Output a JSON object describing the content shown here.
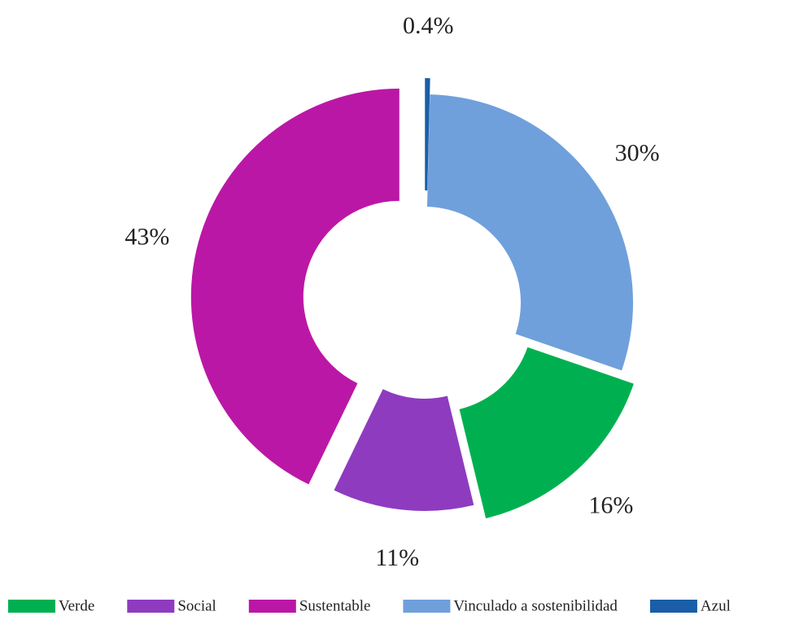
{
  "chart_data": {
    "type": "donut",
    "categories": [
      "Verde",
      "Social",
      "Sustentable",
      "Vinculado a sostenibilidad",
      "Azul"
    ],
    "values": [
      16,
      11,
      43,
      30,
      0.4
    ],
    "value_labels": [
      "16%",
      "11%",
      "43%",
      "30%",
      "0.4%"
    ],
    "colors": [
      "#00b050",
      "#8e3bc0",
      "#bb17a6",
      "#6fa0dc",
      "#1a5ea8"
    ],
    "legend": "bottom"
  }
}
